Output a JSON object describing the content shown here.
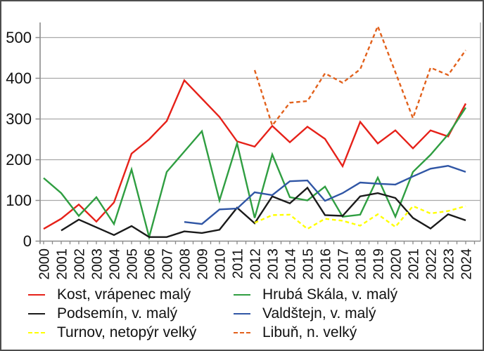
{
  "chart_data": {
    "type": "line",
    "title": "",
    "xlabel": "",
    "ylabel": "",
    "x": [
      2000,
      2001,
      2002,
      2003,
      2004,
      2005,
      2006,
      2007,
      2008,
      2009,
      2010,
      2011,
      2012,
      2013,
      2014,
      2015,
      2016,
      2017,
      2018,
      2019,
      2020,
      2021,
      2022,
      2023,
      2024
    ],
    "yticks": [
      0,
      100,
      200,
      300,
      400,
      500
    ],
    "ylim": [
      0,
      540
    ],
    "grid": true,
    "legend_position": "bottom",
    "axis_color": "#8c8c8c",
    "grid_color": "#a9a9a9",
    "label_color": "#111111",
    "series": [
      {
        "name": "Kost, vrápenec malý",
        "color": "#e62119",
        "style": "solid",
        "values": [
          30,
          55,
          90,
          48,
          95,
          215,
          250,
          295,
          395,
          350,
          305,
          245,
          232,
          283,
          243,
          281,
          251,
          184,
          293,
          240,
          272,
          228,
          272,
          257,
          338
        ]
      },
      {
        "name": "Hrubá Skála, v. malý",
        "color": "#2f9e41",
        "style": "solid",
        "values": [
          155,
          118,
          62,
          108,
          42,
          176,
          10,
          170,
          220,
          270,
          100,
          240,
          57,
          213,
          108,
          100,
          134,
          60,
          65,
          156,
          60,
          170,
          212,
          262,
          328
        ]
      },
      {
        "name": "Podsemín, v. malý",
        "color": "#1a1a1a",
        "style": "solid",
        "values": [
          null,
          26,
          53,
          34,
          15,
          37,
          10,
          10,
          24,
          20,
          28,
          82,
          44,
          110,
          93,
          131,
          64,
          62,
          110,
          118,
          106,
          57,
          31,
          66,
          51
        ]
      },
      {
        "name": "Valdštejn, v. malý",
        "color": "#3056a5",
        "style": "solid",
        "values": [
          null,
          null,
          null,
          null,
          null,
          null,
          null,
          null,
          47,
          42,
          78,
          80,
          120,
          113,
          147,
          149,
          99,
          118,
          144,
          141,
          139,
          159,
          178,
          185,
          170
        ]
      },
      {
        "name": "Turnov, netopýr velký",
        "color": "#ffff00",
        "style": "dashed",
        "values": [
          null,
          null,
          null,
          null,
          null,
          null,
          null,
          null,
          null,
          null,
          null,
          null,
          45,
          64,
          65,
          30,
          55,
          50,
          38,
          66,
          35,
          86,
          68,
          74,
          86
        ]
      },
      {
        "name": "Libuň, n. velký",
        "color": "#e2611c",
        "style": "dashed",
        "values": [
          null,
          null,
          null,
          null,
          null,
          null,
          null,
          null,
          null,
          null,
          null,
          null,
          420,
          284,
          340,
          344,
          412,
          389,
          422,
          528,
          415,
          302,
          426,
          408,
          469
        ]
      }
    ],
    "legend_columns": [
      [
        0,
        2,
        4
      ],
      [
        1,
        3,
        5
      ]
    ]
  }
}
